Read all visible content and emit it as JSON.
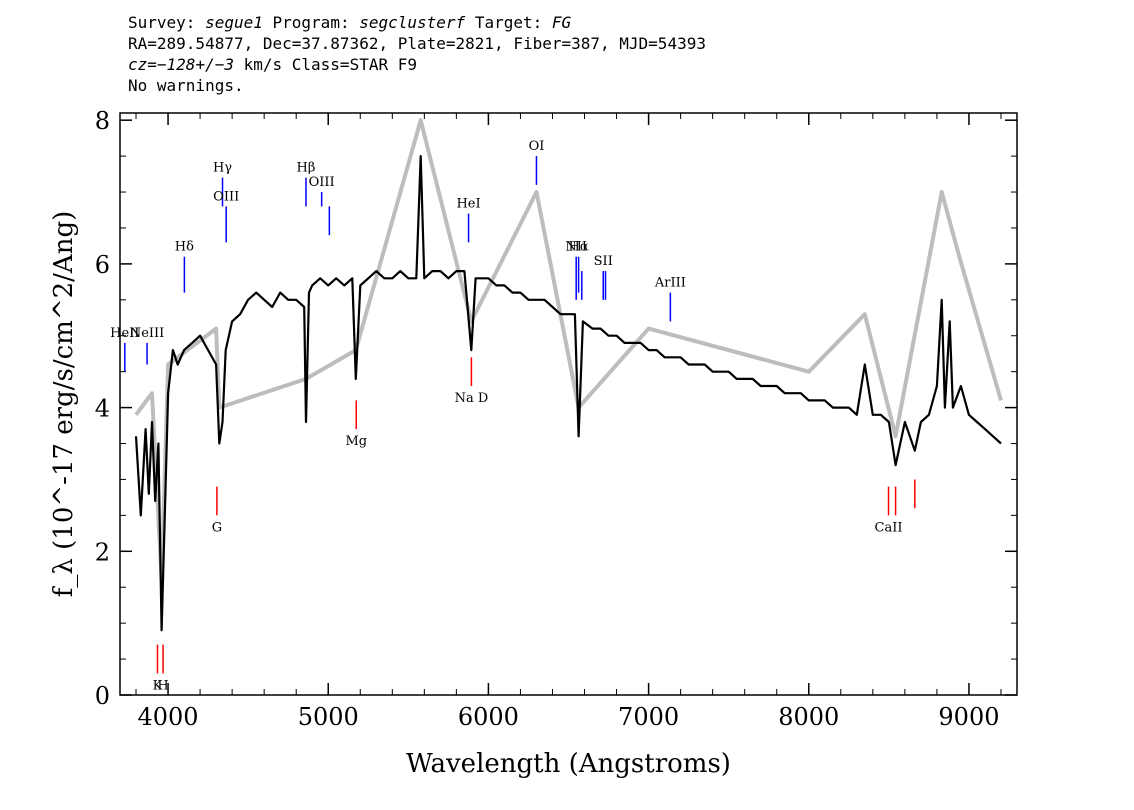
{
  "header": {
    "survey_label": "Survey:",
    "survey": "segue1",
    "program_label": "Program:",
    "program": "segclusterf",
    "target_label": "Target:",
    "target": "FG",
    "line2": "RA=289.54877, Dec=37.87362, Plate=2821, Fiber=387, MJD=54393",
    "cz_label": "cz=",
    "cz_value": "−128+/−3",
    "cz_rest": " km/s Class=STAR F9",
    "warnings": "No warnings."
  },
  "chart_data": {
    "type": "line",
    "title": "",
    "xlabel": "Wavelength (Angstroms)",
    "ylabel": "f_λ (10^-17 erg/s/cm^2/Ang)",
    "xlim": [
      3700,
      9300
    ],
    "ylim": [
      0,
      8.1
    ],
    "x_ticks": [
      4000,
      5000,
      6000,
      7000,
      8000,
      9000
    ],
    "y_ticks": [
      0,
      2,
      4,
      6,
      8
    ],
    "grid": false,
    "series": [
      {
        "role": "flux",
        "color": "#000000",
        "x": [
          3800,
          3830,
          3860,
          3880,
          3900,
          3920,
          3940,
          3960,
          3980,
          4000,
          4030,
          4060,
          4100,
          4150,
          4200,
          4250,
          4300,
          4320,
          4340,
          4360,
          4400,
          4450,
          4500,
          4550,
          4600,
          4650,
          4700,
          4750,
          4800,
          4850,
          4861,
          4880,
          4900,
          4950,
          5000,
          5050,
          5100,
          5150,
          5172,
          5200,
          5250,
          5300,
          5350,
          5400,
          5450,
          5500,
          5550,
          5577,
          5600,
          5650,
          5700,
          5750,
          5800,
          5850,
          5893,
          5920,
          5950,
          6000,
          6050,
          6100,
          6150,
          6200,
          6250,
          6300,
          6350,
          6400,
          6450,
          6500,
          6540,
          6563,
          6590,
          6650,
          6700,
          6750,
          6800,
          6850,
          6900,
          6950,
          7000,
          7050,
          7100,
          7150,
          7200,
          7250,
          7300,
          7350,
          7400,
          7450,
          7500,
          7550,
          7600,
          7650,
          7700,
          7750,
          7800,
          7850,
          7900,
          7950,
          8000,
          8050,
          8100,
          8150,
          8200,
          8250,
          8300,
          8350,
          8400,
          8450,
          8500,
          8542,
          8600,
          8662,
          8700,
          8750,
          8800,
          8830,
          8850,
          8880,
          8900,
          8950,
          9000,
          9050,
          9100,
          9150,
          9200
        ],
        "y": [
          3.6,
          2.5,
          3.7,
          2.8,
          3.8,
          2.7,
          3.5,
          0.9,
          2.5,
          4.2,
          4.8,
          4.6,
          4.8,
          4.9,
          5.0,
          4.8,
          4.6,
          3.5,
          3.8,
          4.8,
          5.2,
          5.3,
          5.5,
          5.6,
          5.5,
          5.4,
          5.6,
          5.5,
          5.5,
          5.4,
          3.8,
          5.6,
          5.7,
          5.8,
          5.7,
          5.8,
          5.7,
          5.8,
          4.4,
          5.7,
          5.8,
          5.9,
          5.8,
          5.8,
          5.9,
          5.8,
          5.8,
          7.5,
          5.8,
          5.9,
          5.9,
          5.8,
          5.9,
          5.9,
          4.8,
          5.8,
          5.8,
          5.8,
          5.7,
          5.7,
          5.6,
          5.6,
          5.5,
          5.5,
          5.5,
          5.4,
          5.3,
          5.3,
          5.3,
          3.6,
          5.2,
          5.1,
          5.1,
          5.0,
          5.0,
          4.9,
          4.9,
          4.9,
          4.8,
          4.8,
          4.7,
          4.7,
          4.7,
          4.6,
          4.6,
          4.6,
          4.5,
          4.5,
          4.5,
          4.4,
          4.4,
          4.4,
          4.3,
          4.3,
          4.3,
          4.2,
          4.2,
          4.2,
          4.1,
          4.1,
          4.1,
          4.0,
          4.0,
          4.0,
          3.9,
          4.6,
          3.9,
          3.9,
          3.8,
          3.2,
          3.8,
          3.4,
          3.8,
          3.9,
          4.3,
          5.5,
          4.0,
          5.2,
          4.0,
          4.3,
          3.9,
          3.8,
          3.7,
          3.6,
          3.5
        ]
      },
      {
        "role": "error",
        "color": "#bdbdbd",
        "x": [
          3800,
          3900,
          3960,
          4000,
          4300,
          4320,
          4861,
          5172,
          5577,
          5893,
          6300,
          6563,
          7000,
          8000,
          8350,
          8542,
          8830,
          8940,
          9200
        ],
        "y": [
          3.9,
          4.2,
          1.6,
          4.6,
          5.1,
          4.0,
          4.4,
          4.8,
          8.0,
          5.2,
          7.0,
          4.0,
          5.1,
          4.5,
          5.3,
          3.6,
          7.0,
          6.1,
          4.1
        ]
      }
    ],
    "emission_lines": [
      {
        "label": "HeII",
        "x": 3730,
        "y": [
          4.5,
          4.9
        ]
      },
      {
        "label": "NeIII",
        "x": 3869,
        "y": [
          4.6,
          4.9
        ]
      },
      {
        "label": "Hδ",
        "x": 4102,
        "y": [
          5.6,
          6.1
        ]
      },
      {
        "label": "Hγ",
        "x": 4340,
        "y": [
          6.8,
          7.2
        ]
      },
      {
        "label": "OIII",
        "x": 4363,
        "y": [
          6.3,
          6.8
        ]
      },
      {
        "label": "Hβ",
        "x": 4861,
        "y": [
          6.8,
          7.2
        ]
      },
      {
        "label": "OIII",
        "x": 4959,
        "y": [
          6.8,
          7.0
        ]
      },
      {
        "label": "OIII",
        "x": 5007,
        "y": [
          6.4,
          6.8
        ]
      },
      {
        "label": "HeI",
        "x": 5876,
        "y": [
          6.3,
          6.7
        ]
      },
      {
        "label": "OI",
        "x": 6300,
        "y": [
          7.1,
          7.5
        ]
      },
      {
        "label": "NII",
        "x": 6548,
        "y": [
          5.5,
          6.1
        ]
      },
      {
        "label": "Hα",
        "x": 6563,
        "y": [
          5.6,
          6.1
        ]
      },
      {
        "label": "NII",
        "x": 6583,
        "y": [
          5.5,
          5.9
        ]
      },
      {
        "label": "SII",
        "x": 6717,
        "y": [
          5.5,
          5.9
        ]
      },
      {
        "label": "SII",
        "x": 6731,
        "y": [
          5.5,
          5.9
        ]
      },
      {
        "label": "ArIII",
        "x": 7136,
        "y": [
          5.2,
          5.6
        ]
      }
    ],
    "absorption_lines": [
      {
        "label": "K",
        "x": 3934,
        "y": [
          0.3,
          0.7
        ]
      },
      {
        "label": "H",
        "x": 3969,
        "y": [
          0.3,
          0.7
        ]
      },
      {
        "label": "G",
        "x": 4305,
        "y": [
          2.5,
          2.9
        ]
      },
      {
        "label": "Mg",
        "x": 5175,
        "y": [
          3.7,
          4.1
        ]
      },
      {
        "label": "Na D",
        "x": 5894,
        "y": [
          4.3,
          4.7
        ]
      },
      {
        "label": "CaII",
        "x": 8498,
        "y": [
          2.5,
          2.9
        ]
      },
      {
        "label": "CaII",
        "x": 8542,
        "y": [
          2.5,
          2.9
        ]
      },
      {
        "label": "CaII",
        "x": 8662,
        "y": [
          2.6,
          3.0
        ]
      }
    ],
    "emission_color": "#0000ff",
    "absorption_color": "#ff0000"
  }
}
